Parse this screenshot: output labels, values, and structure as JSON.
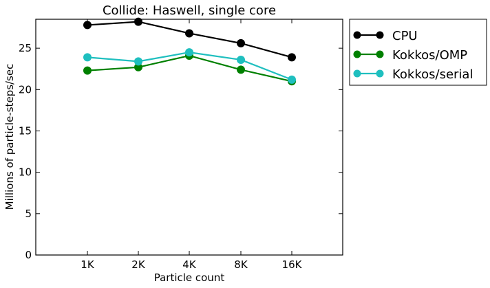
{
  "chart_data": {
    "type": "line",
    "title": "Collide: Haswell, single core",
    "xlabel": "Particle count",
    "ylabel": "Millions of particle-steps/sec",
    "categories": [
      "1K",
      "2K",
      "4K",
      "8K",
      "16K"
    ],
    "ylim": [
      0,
      28.5
    ],
    "yticks": [
      0,
      5,
      10,
      15,
      20,
      25
    ],
    "grid": false,
    "legend_position": "outside-right-top",
    "series": [
      {
        "name": "CPU",
        "color": "#000000",
        "values": [
          27.8,
          28.2,
          26.8,
          25.6,
          23.9
        ]
      },
      {
        "name": "Kokkos/OMP",
        "color": "#008000",
        "values": [
          22.3,
          22.7,
          24.1,
          22.4,
          21.0
        ]
      },
      {
        "name": "Kokkos/serial",
        "color": "#1fbfbf",
        "values": [
          23.9,
          23.4,
          24.5,
          23.6,
          21.2
        ]
      }
    ]
  }
}
